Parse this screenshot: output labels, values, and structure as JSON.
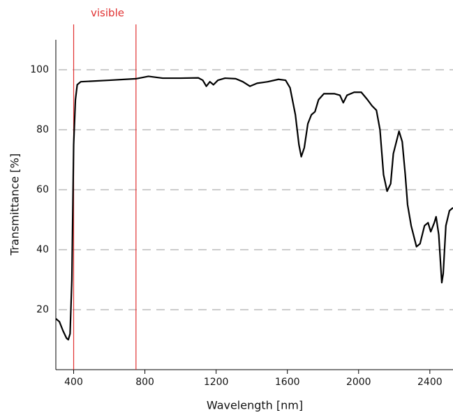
{
  "chart_data": {
    "type": "line",
    "xlabel": "Wavelength [nm]",
    "ylabel": "Transmittance [%]",
    "annotation": {
      "text": "visible",
      "x": [
        400,
        750
      ],
      "color": "#e03030"
    },
    "xlim": [
      300,
      2530
    ],
    "ylim": [
      0,
      110
    ],
    "xticks": [
      400,
      800,
      1200,
      1600,
      2000,
      2400
    ],
    "yticks": [
      20,
      40,
      60,
      80,
      100
    ],
    "grid": true,
    "series": [
      {
        "name": "Transmittance",
        "color": "#000000",
        "x": [
          300,
          320,
          340,
          360,
          370,
          380,
          390,
          400,
          410,
          420,
          440,
          600,
          750,
          820,
          900,
          1000,
          1100,
          1125,
          1145,
          1165,
          1185,
          1210,
          1250,
          1310,
          1350,
          1390,
          1430,
          1490,
          1550,
          1590,
          1615,
          1645,
          1665,
          1678,
          1695,
          1715,
          1735,
          1755,
          1775,
          1805,
          1865,
          1895,
          1914,
          1935,
          1975,
          2015,
          2050,
          2075,
          2100,
          2120,
          2140,
          2160,
          2180,
          2195,
          2227,
          2245,
          2262,
          2275,
          2295,
          2325,
          2345,
          2370,
          2390,
          2405,
          2425,
          2435,
          2450,
          2467,
          2475,
          2490,
          2510,
          2530
        ],
        "values": [
          17,
          16,
          13,
          10.5,
          10,
          12,
          30,
          75,
          90,
          95,
          96,
          96.5,
          97,
          97.8,
          97.2,
          97.2,
          97.3,
          96.5,
          94.5,
          96,
          95,
          96.5,
          97.2,
          97,
          96,
          94.5,
          95.5,
          96,
          96.8,
          96.5,
          94,
          85,
          75,
          71,
          74,
          82,
          85,
          86,
          90,
          92,
          92,
          91.5,
          89,
          91.5,
          92.5,
          92.5,
          90,
          88,
          86.5,
          80,
          65,
          59.5,
          62,
          72,
          79.5,
          76,
          65,
          55,
          48,
          41,
          42,
          48,
          49,
          46,
          49,
          51,
          45,
          29,
          32,
          48,
          53,
          54
        ]
      }
    ]
  }
}
